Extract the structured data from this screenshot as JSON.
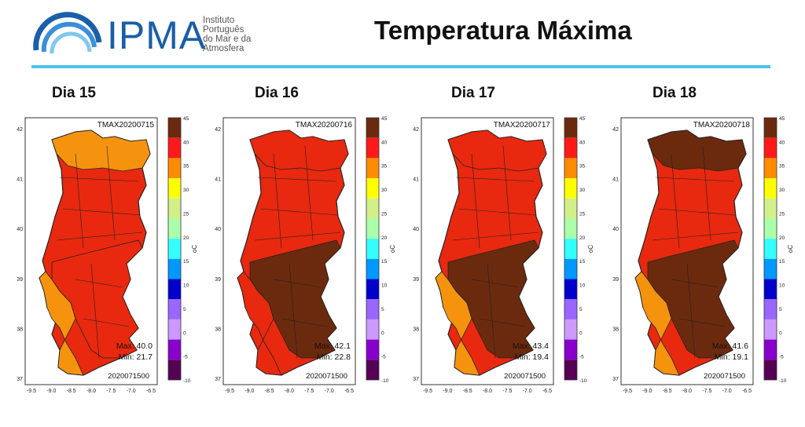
{
  "header": {
    "logo_text": "IPMA",
    "logo_subtitle": [
      "Instituto",
      "Português",
      "do Mar e da",
      "Atmosfera"
    ],
    "title": "Temperatura Máxima"
  },
  "colorbar": {
    "ticks": [
      "45",
      "40",
      "35",
      "30",
      "25",
      "20",
      "15",
      "10",
      "5",
      "0",
      "-5",
      "-10"
    ],
    "unit_label": "oC",
    "colors": [
      "#6b2a0e",
      "#ff1a1a",
      "#ff8c00",
      "#ffff00",
      "#d2f08a",
      "#aaffaa",
      "#33ffff",
      "#0099ff",
      "#0000cc",
      "#9966ff",
      "#cc99ff",
      "#8800cc",
      "#550055"
    ]
  },
  "axes": {
    "x_ticks": [
      "-9.5",
      "-9.0",
      "-8.5",
      "-8.0",
      "-7.5",
      "-7.0",
      "-6.5"
    ],
    "y_ticks": [
      "42",
      "41",
      "40",
      "39",
      "38",
      "37"
    ]
  },
  "legend_colors": {
    "dark_brown": "#6b2a0e",
    "red": "#e8290f",
    "orange": "#f5930f",
    "yellow": "#f0e51a",
    "border": "#222222"
  },
  "panels": [
    {
      "day_label": "Dia 15",
      "map_title": "TMAX20200715",
      "max": "Max: 40.0",
      "min": "Min: 21.7",
      "run": "2020071500",
      "dominant": "red",
      "south_fill": "red",
      "north_fill": "orange",
      "coast_fill": "orange"
    },
    {
      "day_label": "Dia 16",
      "map_title": "TMAX20200716",
      "max": "Max: 42.1",
      "min": "Min: 22.8",
      "run": "2020071500",
      "dominant": "red",
      "south_fill": "dark_brown",
      "north_fill": "red",
      "coast_fill": "red"
    },
    {
      "day_label": "Dia 17",
      "map_title": "TMAX20200717",
      "max": "Max: 43.4",
      "min": "Min: 19.4",
      "run": "2020071500",
      "dominant": "red",
      "south_fill": "dark_brown",
      "north_fill": "red",
      "coast_fill": "orange"
    },
    {
      "day_label": "Dia 18",
      "map_title": "TMAX20200718",
      "max": "Max: 41.6",
      "min": "Min: 19.1",
      "run": "2020071500",
      "dominant": "red",
      "south_fill": "dark_brown",
      "north_fill": "dark_brown",
      "coast_fill": "orange"
    }
  ]
}
